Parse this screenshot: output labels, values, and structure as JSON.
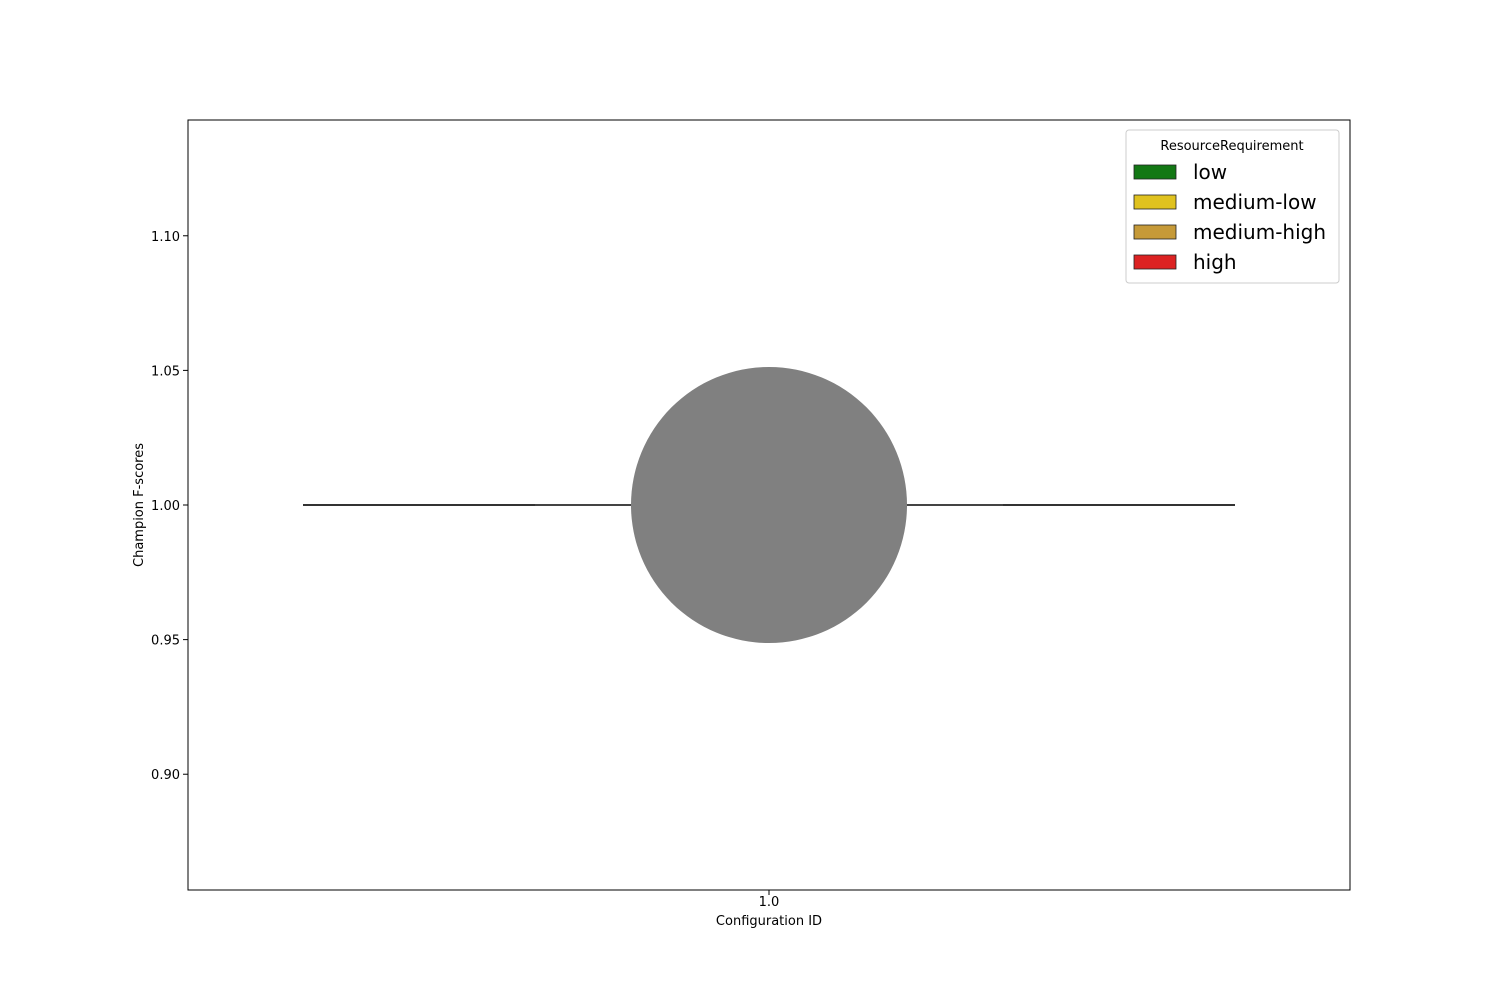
{
  "chart_data": {
    "type": "violin",
    "xlabel": "Configuration ID",
    "ylabel": "Champion F-scores",
    "categories": [
      "1.0"
    ],
    "ylim": [
      0.857,
      1.143
    ],
    "yticks": [
      0.9,
      0.95,
      1.0,
      1.05,
      1.1
    ],
    "ytick_labels": [
      "0.90",
      "0.95",
      "1.00",
      "1.05",
      "1.10"
    ],
    "grid": false,
    "series": [
      {
        "category": "1.0",
        "values": [
          1.0
        ],
        "color": "#808080"
      }
    ],
    "legend": {
      "title": "ResourceRequirement",
      "position": "top-right",
      "entries": [
        {
          "label": "low",
          "color": "#137814"
        },
        {
          "label": "medium-low",
          "color": "#e0c21f"
        },
        {
          "label": "medium-high",
          "color": "#c69a38"
        },
        {
          "label": "high",
          "color": "#dc2222"
        }
      ]
    }
  }
}
